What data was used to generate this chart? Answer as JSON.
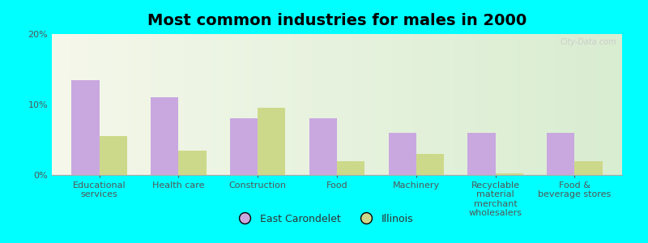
{
  "title": "Most common industries for males in 2000",
  "categories": [
    "Educational\nservices",
    "Health care",
    "Construction",
    "Food",
    "Machinery",
    "Recyclable\nmaterial\nmerchant\nwholesalers",
    "Food &\nbeverage stores"
  ],
  "east_carondelet": [
    13.5,
    11.0,
    8.0,
    8.0,
    6.0,
    6.0,
    6.0
  ],
  "illinois": [
    5.5,
    3.5,
    9.5,
    2.0,
    3.0,
    0.2,
    2.0
  ],
  "ec_color": "#c9a8e0",
  "il_color": "#cdd98a",
  "outer_bg": "#00ffff",
  "ylim": [
    0,
    20
  ],
  "yticks": [
    0,
    10,
    20
  ],
  "ytick_labels": [
    "0%",
    "10%",
    "20%"
  ],
  "bar_width": 0.35,
  "legend_ec": "East Carondelet",
  "legend_il": "Illinois",
  "title_fontsize": 14,
  "tick_fontsize": 8,
  "legend_fontsize": 9
}
